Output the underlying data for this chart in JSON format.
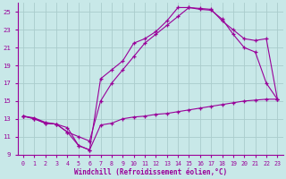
{
  "xlabel": "Windchill (Refroidissement éolien,°C)",
  "bg_color": "#c8e8e8",
  "line_color": "#990099",
  "grid_color": "#aacccc",
  "xlim": [
    -0.5,
    23.5
  ],
  "ylim": [
    9,
    26
  ],
  "yticks": [
    9,
    11,
    13,
    15,
    17,
    19,
    21,
    23,
    25
  ],
  "xticks": [
    0,
    1,
    2,
    3,
    4,
    5,
    6,
    7,
    8,
    9,
    10,
    11,
    12,
    13,
    14,
    15,
    16,
    17,
    18,
    19,
    20,
    21,
    22,
    23
  ],
  "curve1_x": [
    0,
    1,
    2,
    3,
    4,
    5,
    6,
    7,
    8,
    9,
    10,
    11,
    12,
    13,
    14,
    15,
    16,
    17,
    18,
    19,
    20,
    21,
    22,
    23
  ],
  "curve1_y": [
    13.3,
    13.1,
    12.6,
    12.4,
    12.0,
    10.0,
    9.5,
    12.3,
    12.5,
    13.0,
    13.2,
    13.3,
    13.5,
    13.6,
    13.8,
    14.0,
    14.2,
    14.4,
    14.6,
    14.8,
    15.0,
    15.1,
    15.2,
    15.2
  ],
  "curve2_x": [
    0,
    1,
    2,
    3,
    4,
    5,
    6,
    7,
    8,
    9,
    10,
    11,
    12,
    13,
    14,
    15,
    16,
    17,
    18,
    19,
    20,
    21,
    22,
    23
  ],
  "curve2_y": [
    13.3,
    13.0,
    12.5,
    12.4,
    11.5,
    11.0,
    10.5,
    15.0,
    17.0,
    18.5,
    20.0,
    21.5,
    22.5,
    23.5,
    24.5,
    25.5,
    25.3,
    25.2,
    24.2,
    22.5,
    21.0,
    20.5,
    17.0,
    15.2
  ],
  "curve3_x": [
    0,
    1,
    2,
    3,
    4,
    5,
    6,
    7,
    8,
    9,
    10,
    11,
    12,
    13,
    14,
    15,
    16,
    17,
    18,
    19,
    20,
    21,
    22,
    23
  ],
  "curve3_y": [
    13.3,
    13.0,
    12.5,
    12.4,
    11.5,
    10.0,
    9.5,
    17.5,
    18.5,
    19.5,
    21.5,
    22.0,
    22.8,
    24.0,
    25.5,
    25.5,
    25.4,
    25.3,
    24.0,
    23.0,
    22.0,
    21.8,
    22.0,
    15.2
  ]
}
